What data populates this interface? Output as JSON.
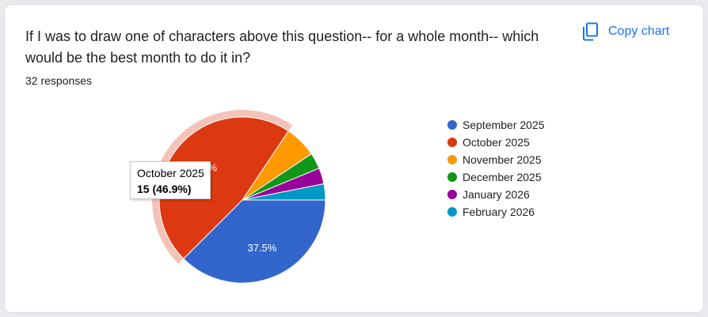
{
  "question": "If I was to draw one of characters above this question-- for a whole month-- which would be the best month to do it in?",
  "responses": "32 responses",
  "copy_label": "Copy chart",
  "copy_icon": "copy-icon",
  "tooltip": {
    "label": "October 2025",
    "value": "15 (46.9%)"
  },
  "chart_data": {
    "type": "pie",
    "categories": [
      "September 2025",
      "October 2025",
      "November 2025",
      "December 2025",
      "January 2026",
      "February 2026"
    ],
    "values": [
      12,
      15,
      2,
      1,
      1,
      1
    ],
    "percent_labels": [
      "37.5%",
      "46.9%",
      "",
      "",
      "",
      ""
    ],
    "colors": [
      "#3366cc",
      "#dc3912",
      "#ff9900",
      "#109618",
      "#990099",
      "#0099c6"
    ],
    "highlighted": "October 2025",
    "legend_position": "right"
  }
}
